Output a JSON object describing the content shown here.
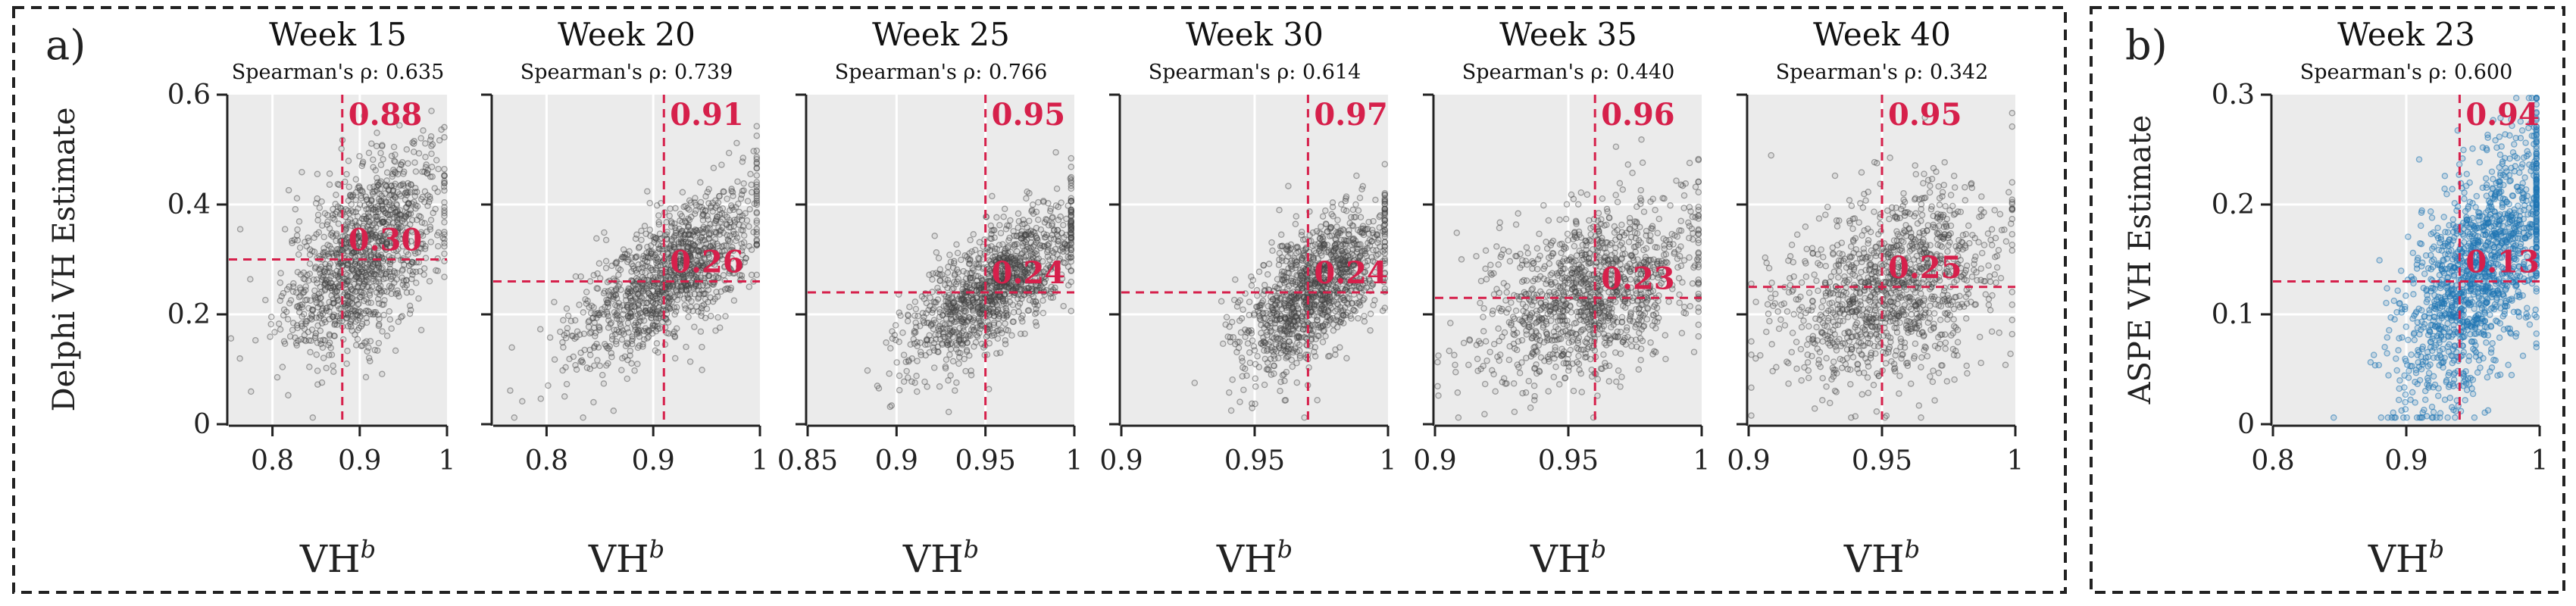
{
  "panels": {
    "a": {
      "letter": "a)"
    },
    "b": {
      "letter": "b)"
    }
  },
  "colors": {
    "grey_points": "#404040",
    "blue_points": "#1f77b4",
    "annotation": "#d6204b",
    "plot_background": "#ebebeb"
  },
  "chart_data": [
    {
      "type": "scatter",
      "panel": "a",
      "title": "Week 15",
      "subtitle": "Spearman's ρ: 0.635",
      "xlabel": "VH",
      "xlabel_sup": "b",
      "ylabel": "Delphi VH Estimate",
      "xlim": [
        0.75,
        1.0
      ],
      "ylim": [
        0.0,
        0.6
      ],
      "xticks": [
        {
          "v": 0.8,
          "label": "0.8"
        },
        {
          "v": 0.9,
          "label": "0.9"
        },
        {
          "v": 1.0,
          "label": "1"
        }
      ],
      "yticks": [
        {
          "v": 0.0,
          "label": "0"
        },
        {
          "v": 0.2,
          "label": "0.2"
        },
        {
          "v": 0.4,
          "label": "0.4"
        },
        {
          "v": 0.6,
          "label": "0.6"
        }
      ],
      "vline": 0.88,
      "hline": 0.3,
      "vline_label": "0.88",
      "hline_label": "0.30",
      "cloud": {
        "mx": 0.905,
        "sx": 0.045,
        "my": 0.31,
        "sy": 0.095,
        "corr": 0.55,
        "n": 1200,
        "color": "grey"
      }
    },
    {
      "type": "scatter",
      "panel": "a",
      "title": "Week 20",
      "subtitle": "Spearman's ρ: 0.739",
      "xlabel": "VH",
      "xlabel_sup": "b",
      "xlim": [
        0.75,
        1.0
      ],
      "ylim": [
        0.0,
        0.6
      ],
      "xticks": [
        {
          "v": 0.8,
          "label": "0.8"
        },
        {
          "v": 0.9,
          "label": "0.9"
        },
        {
          "v": 1.0,
          "label": "1"
        }
      ],
      "yticks": [
        {
          "v": 0.0,
          "label": ""
        },
        {
          "v": 0.2,
          "label": ""
        },
        {
          "v": 0.4,
          "label": ""
        },
        {
          "v": 0.6,
          "label": ""
        }
      ],
      "vline": 0.91,
      "hline": 0.26,
      "vline_label": "0.91",
      "hline_label": "0.26",
      "cloud": {
        "mx": 0.915,
        "sx": 0.045,
        "my": 0.27,
        "sy": 0.08,
        "corr": 0.7,
        "n": 1200,
        "color": "grey"
      }
    },
    {
      "type": "scatter",
      "panel": "a",
      "title": "Week 25",
      "subtitle": "Spearman's ρ: 0.766",
      "xlabel": "VH",
      "xlabel_sup": "b",
      "xlim": [
        0.85,
        1.0
      ],
      "ylim": [
        0.0,
        0.6
      ],
      "xticks": [
        {
          "v": 0.85,
          "label": "0.85"
        },
        {
          "v": 0.9,
          "label": "0.9"
        },
        {
          "v": 0.95,
          "label": "0.95"
        },
        {
          "v": 1.0,
          "label": "1"
        }
      ],
      "yticks": [
        {
          "v": 0.0,
          "label": ""
        },
        {
          "v": 0.2,
          "label": ""
        },
        {
          "v": 0.4,
          "label": ""
        },
        {
          "v": 0.6,
          "label": ""
        }
      ],
      "vline": 0.95,
      "hline": 0.24,
      "vline_label": "0.95",
      "hline_label": "0.24",
      "cloud": {
        "mx": 0.955,
        "sx": 0.025,
        "my": 0.25,
        "sy": 0.075,
        "corr": 0.72,
        "n": 1200,
        "color": "grey"
      }
    },
    {
      "type": "scatter",
      "panel": "a",
      "title": "Week 30",
      "subtitle": "Spearman's ρ: 0.614",
      "xlabel": "VH",
      "xlabel_sup": "b",
      "xlim": [
        0.9,
        1.0
      ],
      "ylim": [
        0.0,
        0.6
      ],
      "xticks": [
        {
          "v": 0.9,
          "label": "0.9"
        },
        {
          "v": 0.95,
          "label": "0.95"
        },
        {
          "v": 1.0,
          "label": "1"
        }
      ],
      "yticks": [
        {
          "v": 0.0,
          "label": ""
        },
        {
          "v": 0.2,
          "label": ""
        },
        {
          "v": 0.4,
          "label": ""
        },
        {
          "v": 0.6,
          "label": ""
        }
      ],
      "vline": 0.97,
      "hline": 0.24,
      "vline_label": "0.97",
      "hline_label": "0.24",
      "cloud": {
        "mx": 0.972,
        "sx": 0.014,
        "my": 0.24,
        "sy": 0.075,
        "corr": 0.6,
        "n": 1200,
        "color": "grey"
      }
    },
    {
      "type": "scatter",
      "panel": "a",
      "title": "Week 35",
      "subtitle": "Spearman's ρ: 0.440",
      "xlabel": "VH",
      "xlabel_sup": "b",
      "xlim": [
        0.9,
        1.0
      ],
      "ylim": [
        0.0,
        0.6
      ],
      "xticks": [
        {
          "v": 0.9,
          "label": "0.9"
        },
        {
          "v": 0.95,
          "label": "0.95"
        },
        {
          "v": 1.0,
          "label": "1"
        }
      ],
      "yticks": [
        {
          "v": 0.0,
          "label": ""
        },
        {
          "v": 0.2,
          "label": ""
        },
        {
          "v": 0.4,
          "label": ""
        },
        {
          "v": 0.6,
          "label": ""
        }
      ],
      "vline": 0.96,
      "hline": 0.23,
      "vline_label": "0.96",
      "hline_label": "0.23",
      "cloud": {
        "mx": 0.958,
        "sx": 0.02,
        "my": 0.24,
        "sy": 0.085,
        "corr": 0.42,
        "n": 1200,
        "color": "grey"
      }
    },
    {
      "type": "scatter",
      "panel": "a",
      "title": "Week 40",
      "subtitle": "Spearman's ρ: 0.342",
      "xlabel": "VH",
      "xlabel_sup": "b",
      "xlim": [
        0.9,
        1.0
      ],
      "ylim": [
        0.0,
        0.6
      ],
      "xticks": [
        {
          "v": 0.9,
          "label": "0.9"
        },
        {
          "v": 0.95,
          "label": "0.95"
        },
        {
          "v": 1.0,
          "label": "1"
        }
      ],
      "yticks": [
        {
          "v": 0.0,
          "label": ""
        },
        {
          "v": 0.2,
          "label": ""
        },
        {
          "v": 0.4,
          "label": ""
        },
        {
          "v": 0.6,
          "label": ""
        }
      ],
      "vline": 0.95,
      "hline": 0.25,
      "vline_label": "0.95",
      "hline_label": "0.25",
      "cloud": {
        "mx": 0.953,
        "sx": 0.02,
        "my": 0.25,
        "sy": 0.09,
        "corr": 0.33,
        "n": 1200,
        "color": "grey"
      }
    },
    {
      "type": "scatter",
      "panel": "b",
      "title": "Week 23",
      "subtitle": "Spearman's ρ: 0.600",
      "xlabel": "VH",
      "xlabel_sup": "b",
      "ylabel": "ASPE VH Estimate",
      "xlim": [
        0.8,
        1.0
      ],
      "ylim": [
        0.0,
        0.3
      ],
      "xticks": [
        {
          "v": 0.8,
          "label": "0.8"
        },
        {
          "v": 0.9,
          "label": "0.9"
        },
        {
          "v": 1.0,
          "label": "1"
        }
      ],
      "yticks": [
        {
          "v": 0.0,
          "label": "0"
        },
        {
          "v": 0.1,
          "label": "0.1"
        },
        {
          "v": 0.2,
          "label": "0.2"
        },
        {
          "v": 0.3,
          "label": "0.3"
        }
      ],
      "vline": 0.94,
      "hline": 0.13,
      "vline_label": "0.94",
      "hline_label": "0.13",
      "cloud": {
        "mx": 0.955,
        "sx": 0.03,
        "my": 0.14,
        "sy": 0.06,
        "corr": 0.6,
        "n": 1400,
        "color": "blue"
      }
    }
  ]
}
